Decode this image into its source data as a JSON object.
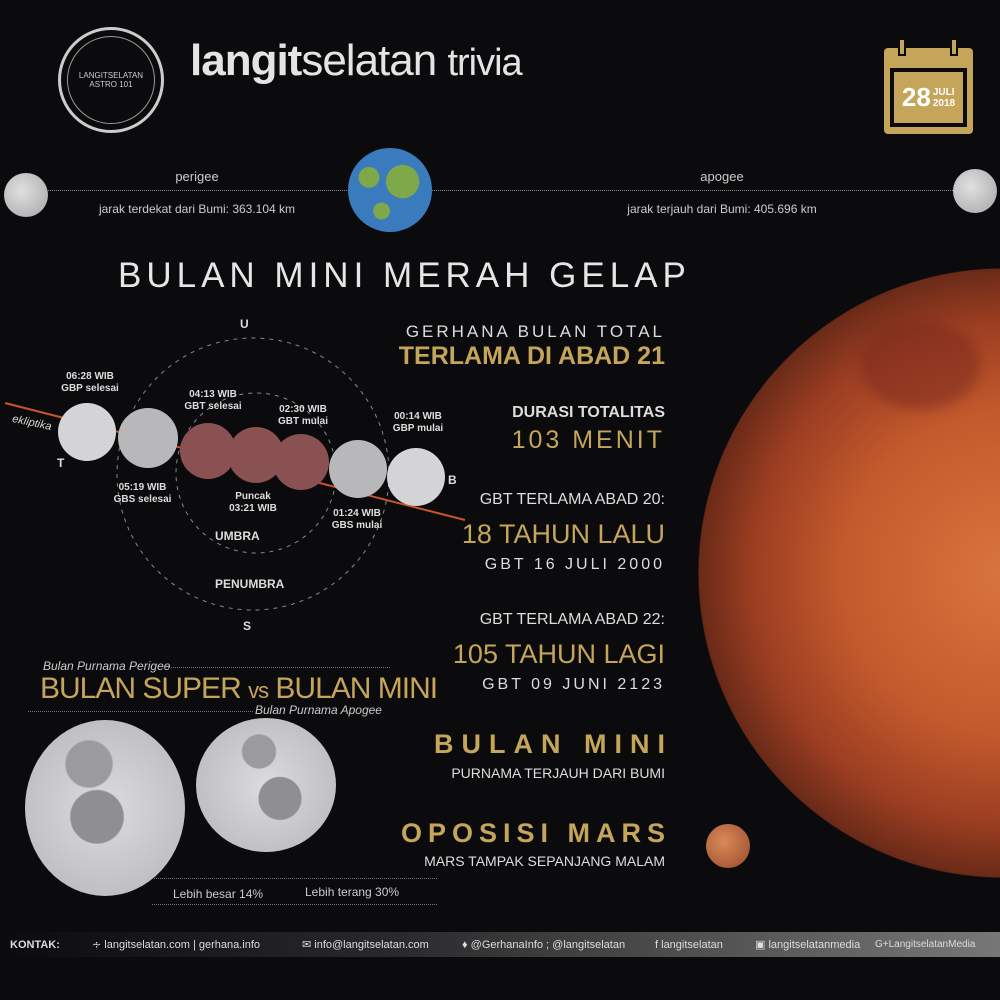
{
  "header": {
    "logo_text": "LANGITSELATAN ASTRO 101",
    "title_bold": "langit",
    "title_light": "selatan",
    "title_suffix": "trivia",
    "calendar": {
      "day": "28",
      "month": "JULI",
      "year": "2018"
    }
  },
  "distance": {
    "perigee_label": "perigee",
    "perigee_text": "jarak terdekat dari Bumi: 363.104 km",
    "apogee_label": "apogee",
    "apogee_text": "jarak terjauh dari Bumi: 405.696 km"
  },
  "main_title": "BULAN MINI MERAH GELAP",
  "diagram": {
    "north": "U",
    "south": "S",
    "east": "T",
    "west": "B",
    "ecliptic": "ekliptika",
    "umbra": "UMBRA",
    "penumbra": "PENUMBRA",
    "events": [
      {
        "time": "06:28 WIB",
        "name": "GBP selesai"
      },
      {
        "time": "05:19 WIB",
        "name": "GBS selesai"
      },
      {
        "time": "04:13 WIB",
        "name": "GBT selesai"
      },
      {
        "time": "03:21 WIB",
        "name": "Puncak"
      },
      {
        "time": "02:30 WIB",
        "name": "GBT mulai"
      },
      {
        "time": "01:24 WIB",
        "name": "GBS mulai"
      },
      {
        "time": "00:14 WIB",
        "name": "GBP mulai"
      }
    ],
    "colors": {
      "ecliptic": "#c8552a",
      "eclipsed_moon": "#8a5152",
      "moon": "#d4d4d6"
    }
  },
  "facts": [
    {
      "sub": "GERHANA BULAN TOTAL",
      "title": "TERLAMA DI ABAD 21"
    },
    {
      "sub": "DURASI TOTALITAS",
      "title": "103 MENIT"
    },
    {
      "sub": "GBT TERLAMA ABAD 20:",
      "title": "18 TAHUN LALU",
      "note": "GBT 16 JULI 2000"
    },
    {
      "sub": "GBT TERLAMA ABAD 22:",
      "title": "105 TAHUN LAGI",
      "note": "GBT 09 JUNI 2123"
    },
    {
      "title": "BULAN MINI",
      "note": "PURNAMA TERJAUH DARI BUMI"
    },
    {
      "title": "OPOSISI MARS",
      "note": "MARS TAMPAK SEPANJANG MALAM"
    }
  ],
  "comparison": {
    "top_label": "Bulan Purnama Perigee",
    "title_a": "BULAN SUPER",
    "vs": "vs",
    "title_b": "BULAN MINI",
    "bottom_label": "Bulan Purnama Apogee",
    "bigger": "Lebih besar 14%",
    "brighter": "Lebih terang 30%"
  },
  "footer": {
    "label": "KONTAK:",
    "items": [
      {
        "icon": "rss-icon",
        "text": "langitselatan.com | gerhana.info"
      },
      {
        "icon": "mail-icon",
        "text": "info@langitselatan.com"
      },
      {
        "icon": "twitter-icon",
        "text": "@GerhanaInfo ; @langitselatan"
      },
      {
        "icon": "facebook-icon",
        "text": "langitselatan"
      },
      {
        "icon": "instagram-icon",
        "text": "langitselatanmedia"
      },
      {
        "icon": "google-plus-icon",
        "text": "G+LangitselatanMedia"
      }
    ]
  },
  "colors": {
    "gold": "#c4a55a",
    "background": "#0b0b0d",
    "mars": "#c8582e"
  }
}
